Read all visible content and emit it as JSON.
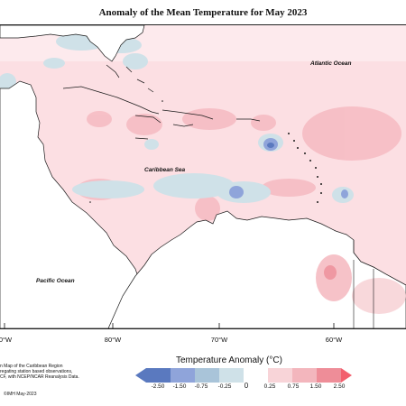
{
  "title": "Anomaly of the Mean Temperature for May 2023",
  "map": {
    "ocean_labels": [
      "Atlantic Ocean",
      "Caribbean Sea",
      "Pacific Ocean"
    ],
    "longitude_labels": [
      "0°W",
      "80°W",
      "70°W",
      "60°W"
    ],
    "colors": {
      "land_background": "#ffffff",
      "coastline": "#1a1a1a",
      "ocean_anomaly": "#fcdfe3"
    }
  },
  "credit_lines": [
    "n Map of the Caribbean Region",
    "regating station based observations,",
    "CF, with NCEP/NCAR Reanalysis Data."
  ],
  "copyright": "©IMH May-2023",
  "legend": {
    "title": "Temperature Anomaly (°C)",
    "ticks": [
      "-2.50",
      "-1.50",
      "-0.75",
      "-0.25",
      "0",
      "0.25",
      "0.75",
      "1.50",
      "2.50"
    ],
    "colors": [
      "#5a79bf",
      "#8fa4da",
      "#a9c4d9",
      "#cfe1e8",
      "#ffffff",
      "#f8d4d8",
      "#f3b6bd",
      "#ee8d98",
      "#f25f6e"
    ]
  }
}
